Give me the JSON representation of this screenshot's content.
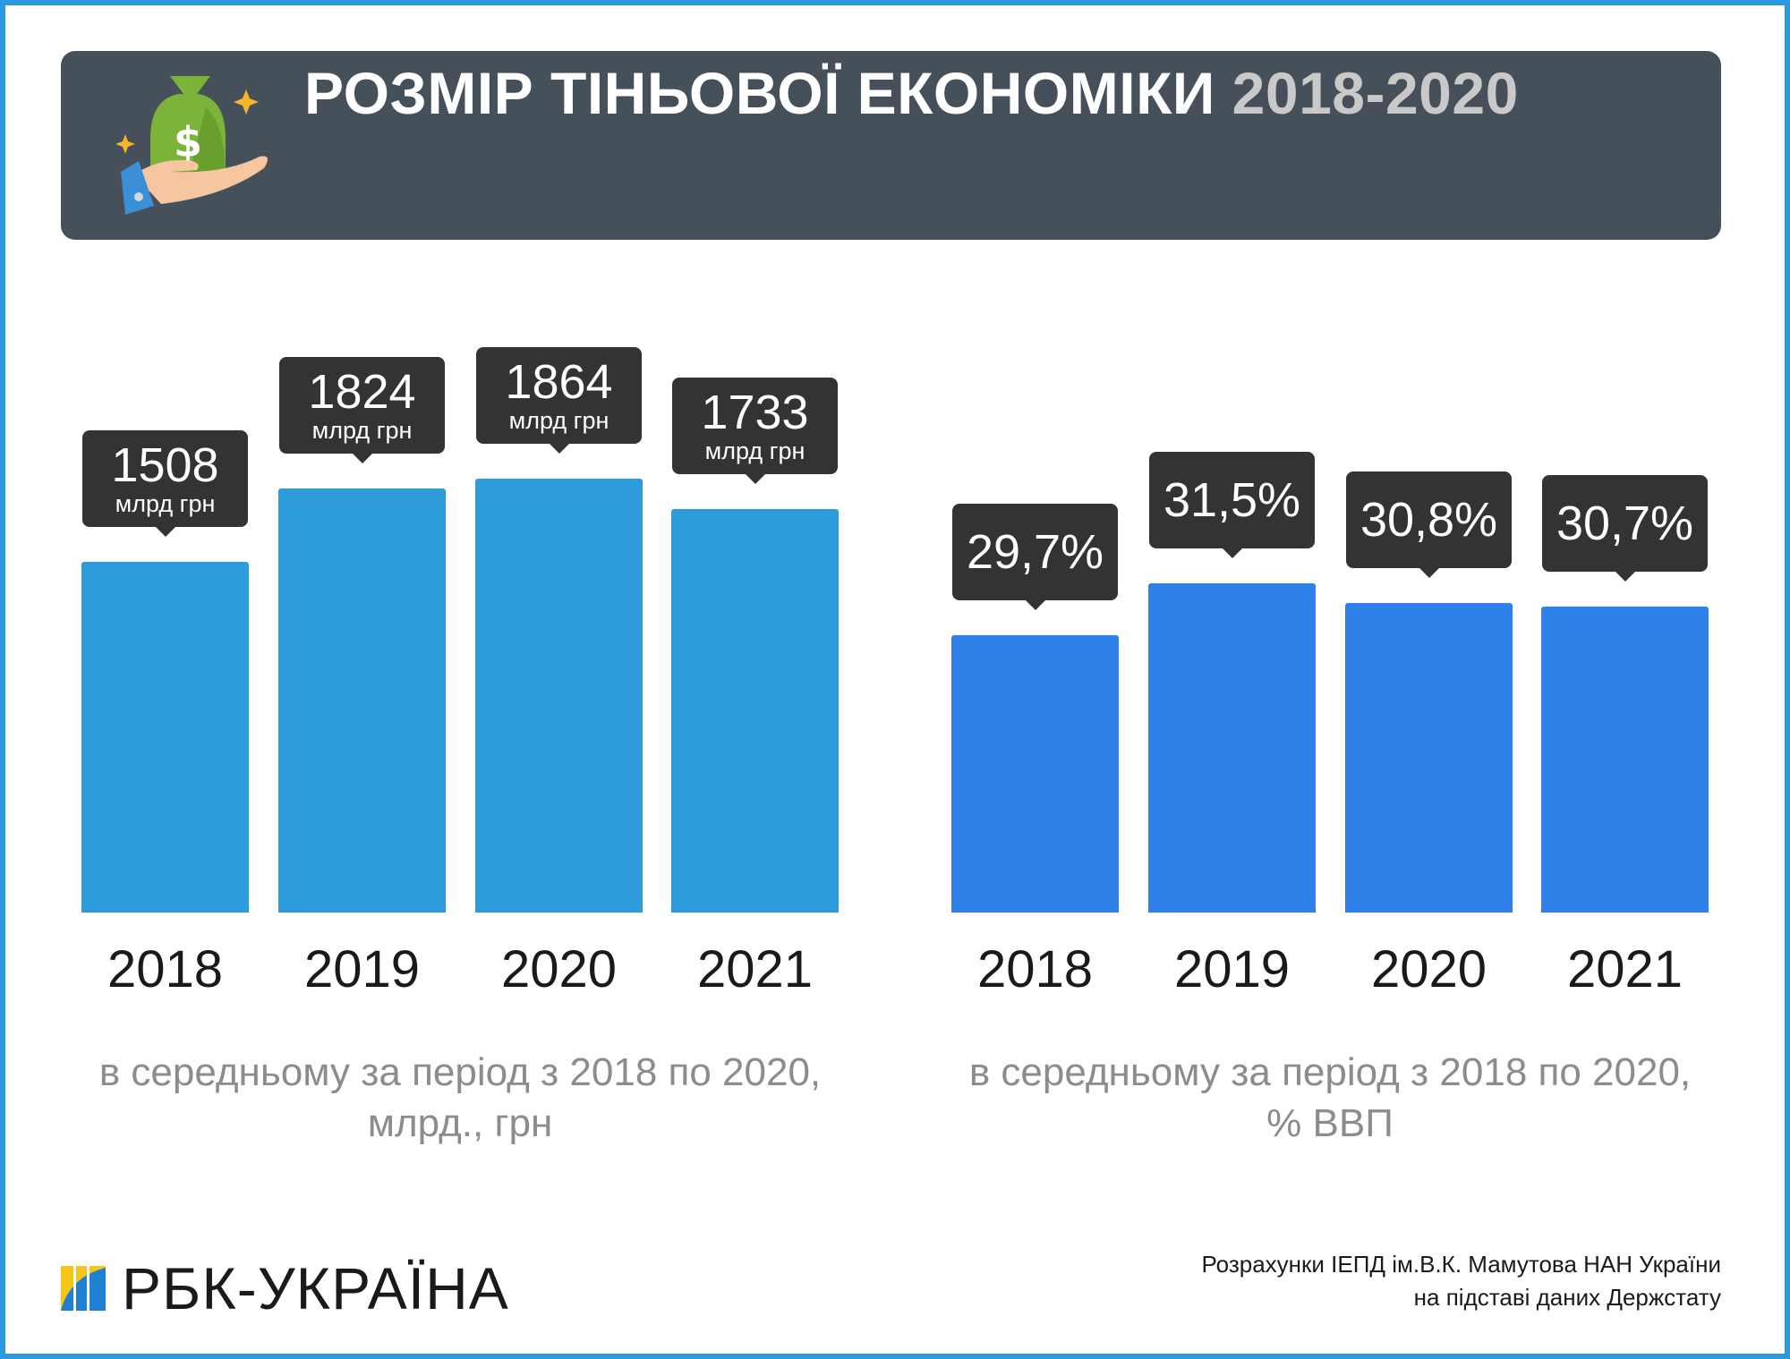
{
  "header": {
    "title_main": "РОЗМІР ТІНЬОВОЇ ЕКОНОМІКИ",
    "title_years": "2018-2020",
    "icon": "money-bag-in-hand-icon"
  },
  "chart_data": [
    {
      "type": "bar",
      "categories": [
        "2018",
        "2019",
        "2020",
        "2021"
      ],
      "values": [
        1508,
        1824,
        1864,
        1733
      ],
      "data_labels": [
        "1508",
        "1824",
        "1864",
        "1733"
      ],
      "unit_label": "млрд грн",
      "caption": "в середньому за період з 2018 по 2020, млрд., грн",
      "color": "#2e9bdb",
      "ylim": [
        0,
        2000
      ],
      "grid": false
    },
    {
      "type": "bar",
      "categories": [
        "2018",
        "2019",
        "2020",
        "2021"
      ],
      "values": [
        29.7,
        31.5,
        30.8,
        30.7
      ],
      "data_labels": [
        "29,7%",
        "31,5%",
        "30,8%",
        "30,7%"
      ],
      "caption": "в середньому за період з 2018 по 2020, % ВВП",
      "color": "#2f80e8",
      "ylim": [
        20,
        35
      ],
      "grid": false
    }
  ],
  "footer": {
    "logo_text": "РБК-УКРАЇНА",
    "source_line1": "Розрахунки ІЕПД ім.В.К. Мамутова НАН України",
    "source_line2": "на підставі даних Держстату"
  },
  "colors": {
    "frame": "#2d9bdb",
    "header_bg": "#46505a",
    "tooltip_bg": "#333333"
  }
}
